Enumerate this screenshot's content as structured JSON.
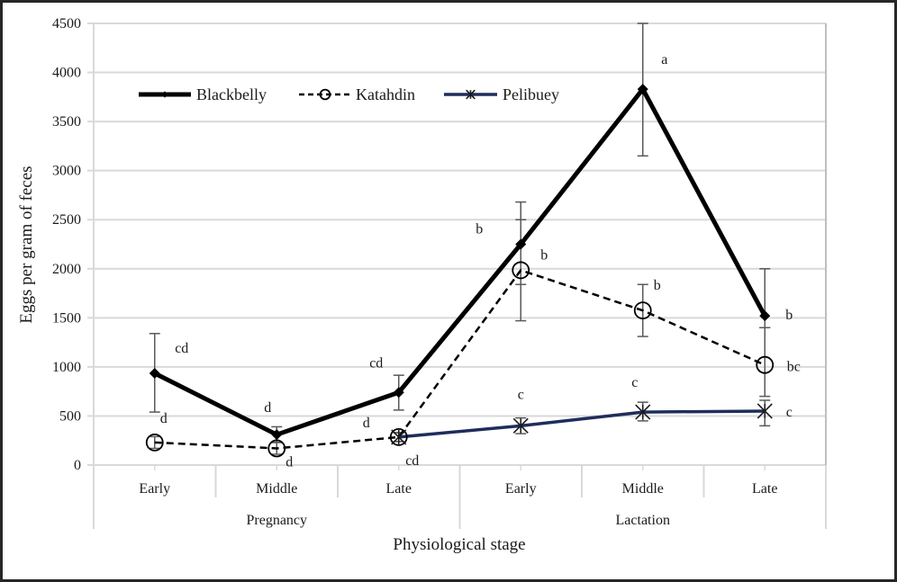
{
  "chart_data": {
    "type": "line",
    "title": "",
    "xlabel": "Physiological stage",
    "ylabel": "Eggs per gram of feces",
    "ylim": [
      0,
      4500
    ],
    "yticks": [
      0,
      500,
      1000,
      1500,
      2000,
      2500,
      3000,
      3500,
      4000,
      4500
    ],
    "ytick_labels": [
      "0",
      "500",
      "1000",
      "1500",
      "2000",
      "2500",
      "3000",
      "3500",
      "4000",
      "4500"
    ],
    "grid": true,
    "legend_position": "top-left",
    "categories": [
      "Early",
      "Middle",
      "Late",
      "Early",
      "Middle",
      "Late"
    ],
    "category_groups": [
      {
        "label": "Pregnancy",
        "span": [
          0,
          2
        ]
      },
      {
        "label": "Lactation",
        "span": [
          3,
          5
        ]
      }
    ],
    "series": [
      {
        "name": "Blackbelly",
        "color": "#000000",
        "line_style": "solid",
        "marker": "diamond",
        "values": [
          935,
          310,
          740,
          2250,
          3830,
          1520
        ],
        "error_upper": [
          1340,
          390,
          915,
          2680,
          4500,
          2000
        ],
        "error_lower": [
          540,
          230,
          560,
          1840,
          3150,
          1400
        ],
        "letters": [
          "cd",
          "d",
          "cd",
          "b",
          "a",
          "b"
        ]
      },
      {
        "name": "Katahdin",
        "color": "#000000",
        "line_style": "dashed",
        "marker": "open-circle",
        "values": [
          230,
          170,
          285,
          null,
          1575,
          1020
        ],
        "values_full": [
          230,
          170,
          285,
          1985,
          1575,
          1020
        ],
        "error_upper": [
          290,
          230,
          330,
          2500,
          1840,
          1400
        ],
        "error_lower": [
          170,
          110,
          240,
          1470,
          1310,
          700
        ],
        "letters": [
          "d",
          "d",
          "d",
          "b",
          "b",
          "bc"
        ]
      },
      {
        "name": "Pelibuey",
        "color": "#1f2d5c",
        "line_style": "solid",
        "marker": "asterisk",
        "values": [
          null,
          null,
          285,
          400,
          540,
          550
        ],
        "error_upper": [
          null,
          null,
          330,
          480,
          640,
          660
        ],
        "error_lower": [
          null,
          null,
          240,
          320,
          450,
          400
        ],
        "letters": [
          null,
          null,
          "cd",
          "c",
          "c",
          "c"
        ]
      }
    ]
  }
}
